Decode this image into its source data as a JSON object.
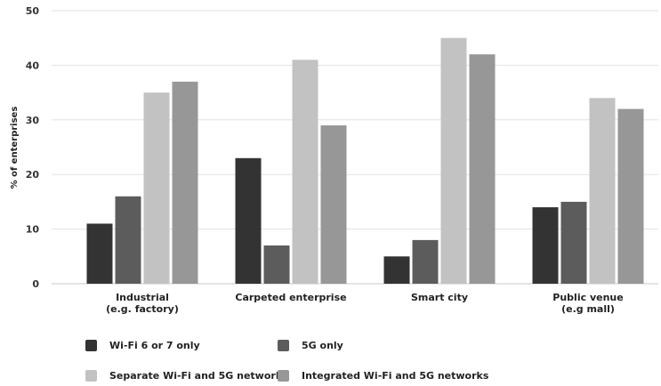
{
  "chart_data": {
    "type": "bar",
    "title": "",
    "xlabel": "",
    "ylabel": "% of enterprises",
    "ylim": [
      0,
      50
    ],
    "yticks": [
      0,
      10,
      20,
      30,
      40,
      50
    ],
    "grid": true,
    "legend_position": "bottom",
    "categories": [
      [
        "Industrial",
        "(e.g. factory)"
      ],
      [
        "Carpeted enterprise"
      ],
      [
        "Smart city"
      ],
      [
        "Public venue",
        "(e.g mall)"
      ]
    ],
    "series": [
      {
        "name": "Wi-Fi 6 or 7 only",
        "color": "#333333",
        "values": [
          11,
          23,
          5,
          14
        ]
      },
      {
        "name": "5G only",
        "color": "#5c5c5c",
        "values": [
          16,
          7,
          8,
          15
        ]
      },
      {
        "name": "Separate Wi-Fi and 5G networks",
        "color": "#c2c2c2",
        "values": [
          35,
          41,
          45,
          34
        ]
      },
      {
        "name": "Integrated Wi-Fi and 5G networks",
        "color": "#979797",
        "values": [
          37,
          29,
          42,
          32
        ]
      }
    ]
  }
}
